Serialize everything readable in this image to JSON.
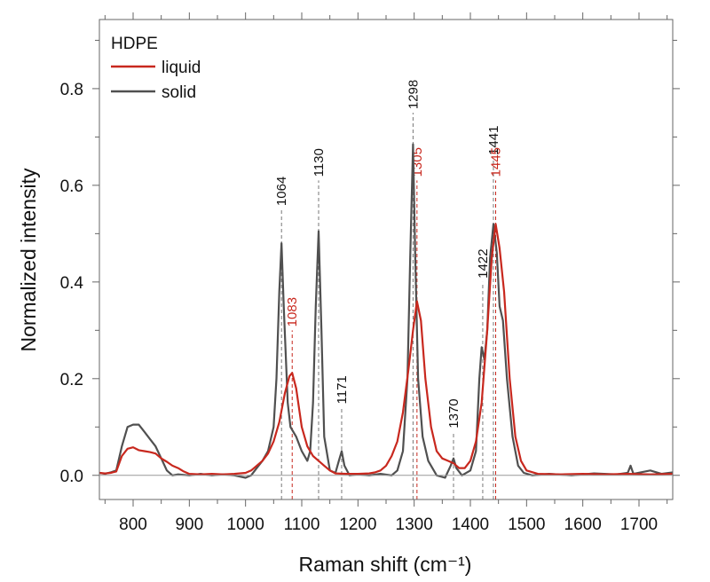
{
  "chart_data": {
    "type": "line",
    "title": "",
    "xlabel": "Raman shift (cm⁻¹)",
    "ylabel": "Normalized intensity",
    "xlim": [
      740,
      1760
    ],
    "ylim": [
      -0.05,
      0.943
    ],
    "xticks": [
      800,
      900,
      1000,
      1100,
      1200,
      1300,
      1400,
      1500,
      1600,
      1700
    ],
    "xtick_labels": [
      "800",
      "900",
      "1000",
      "1100",
      "1200",
      "1300",
      "1400",
      "1500",
      "1600",
      "1700"
    ],
    "yticks": [
      0.0,
      0.2,
      0.4,
      0.6,
      0.8
    ],
    "ytick_labels": [
      "0.0",
      "0.2",
      "0.4",
      "0.6",
      "0.8"
    ],
    "grid": false,
    "legend": {
      "title": "HDPE",
      "placement": "top-left",
      "entries": [
        "liquid",
        "solid"
      ]
    },
    "series": [
      {
        "name": "liquid",
        "color": "#c8281e",
        "x": [
          740,
          750,
          760,
          770,
          780,
          790,
          800,
          810,
          820,
          830,
          840,
          850,
          860,
          870,
          880,
          890,
          900,
          920,
          940,
          960,
          980,
          1000,
          1010,
          1020,
          1030,
          1040,
          1050,
          1060,
          1070,
          1078,
          1083,
          1090,
          1100,
          1110,
          1120,
          1130,
          1140,
          1150,
          1160,
          1180,
          1200,
          1220,
          1230,
          1240,
          1250,
          1260,
          1270,
          1280,
          1290,
          1298,
          1305,
          1312,
          1320,
          1330,
          1340,
          1350,
          1360,
          1370,
          1380,
          1390,
          1400,
          1410,
          1420,
          1430,
          1438,
          1445,
          1452,
          1460,
          1470,
          1480,
          1490,
          1500,
          1520,
          1560,
          1600,
          1640,
          1680,
          1720,
          1760
        ],
        "y": [
          0.005,
          0.004,
          0.005,
          0.008,
          0.04,
          0.055,
          0.058,
          0.052,
          0.05,
          0.048,
          0.045,
          0.035,
          0.028,
          0.02,
          0.015,
          0.008,
          0.003,
          0.002,
          0.003,
          0.002,
          0.003,
          0.005,
          0.01,
          0.02,
          0.03,
          0.045,
          0.07,
          0.11,
          0.17,
          0.205,
          0.212,
          0.18,
          0.1,
          0.06,
          0.04,
          0.03,
          0.02,
          0.01,
          0.004,
          0.003,
          0.003,
          0.004,
          0.006,
          0.01,
          0.02,
          0.04,
          0.07,
          0.13,
          0.22,
          0.3,
          0.36,
          0.32,
          0.2,
          0.1,
          0.05,
          0.035,
          0.03,
          0.025,
          0.015,
          0.015,
          0.03,
          0.07,
          0.15,
          0.3,
          0.45,
          0.52,
          0.47,
          0.38,
          0.2,
          0.08,
          0.03,
          0.01,
          0.003,
          0.002,
          0.003,
          0.002,
          0.003,
          0.002,
          0.003
        ]
      },
      {
        "name": "solid",
        "color": "#505050",
        "x": [
          740,
          750,
          760,
          770,
          780,
          790,
          800,
          810,
          820,
          830,
          840,
          850,
          860,
          870,
          880,
          900,
          920,
          940,
          960,
          980,
          1000,
          1010,
          1020,
          1030,
          1040,
          1050,
          1055,
          1060,
          1064,
          1068,
          1075,
          1080,
          1090,
          1100,
          1110,
          1115,
          1120,
          1125,
          1130,
          1135,
          1140,
          1150,
          1160,
          1166,
          1171,
          1176,
          1185,
          1200,
          1220,
          1240,
          1260,
          1270,
          1280,
          1288,
          1293,
          1298,
          1302,
          1307,
          1315,
          1325,
          1340,
          1355,
          1365,
          1370,
          1375,
          1385,
          1400,
          1410,
          1416,
          1420,
          1425,
          1430,
          1435,
          1441,
          1447,
          1452,
          1458,
          1465,
          1475,
          1485,
          1495,
          1510,
          1540,
          1580,
          1620,
          1660,
          1680,
          1685,
          1690,
          1720,
          1740,
          1760
        ],
        "y": [
          0.005,
          0.003,
          0.006,
          0.01,
          0.06,
          0.1,
          0.105,
          0.105,
          0.09,
          0.075,
          0.06,
          0.035,
          0.01,
          0.0,
          0.002,
          0.0,
          0.003,
          0.0,
          0.002,
          0.0,
          -0.005,
          0.0,
          0.015,
          0.03,
          0.05,
          0.1,
          0.2,
          0.38,
          0.48,
          0.35,
          0.15,
          0.1,
          0.08,
          0.05,
          0.03,
          0.05,
          0.15,
          0.35,
          0.505,
          0.3,
          0.08,
          0.01,
          0.005,
          0.03,
          0.05,
          0.02,
          0.0,
          0.002,
          0.0,
          0.003,
          0.0,
          0.01,
          0.05,
          0.2,
          0.45,
          0.685,
          0.45,
          0.2,
          0.08,
          0.03,
          0.0,
          -0.005,
          0.02,
          0.035,
          0.015,
          0.0,
          0.01,
          0.05,
          0.2,
          0.265,
          0.24,
          0.3,
          0.45,
          0.52,
          0.46,
          0.35,
          0.32,
          0.2,
          0.08,
          0.02,
          0.005,
          0.0,
          0.003,
          0.0,
          0.004,
          0.002,
          0.005,
          0.02,
          0.003,
          0.01,
          0.003,
          0.006
        ]
      }
    ],
    "annotations": [
      {
        "text": "1064",
        "x": 1064,
        "label_y": 0.55,
        "series": "solid"
      },
      {
        "text": "1083",
        "x": 1083,
        "label_y": 0.3,
        "series": "liquid"
      },
      {
        "text": "1130",
        "x": 1130,
        "label_y": 0.61,
        "series": "solid"
      },
      {
        "text": "1171",
        "x": 1171,
        "label_y": 0.14,
        "series": "solid"
      },
      {
        "text": "1298",
        "x": 1298,
        "label_y": 0.75,
        "series": "solid"
      },
      {
        "text": "1305",
        "x": 1305,
        "label_y": 0.61,
        "series": "liquid"
      },
      {
        "text": "1370",
        "x": 1370,
        "label_y": 0.09,
        "series": "solid"
      },
      {
        "text": "1422",
        "x": 1422,
        "label_y": 0.4,
        "series": "solid"
      },
      {
        "text": "1441",
        "x": 1441,
        "label_y": 0.655,
        "series": "solid"
      },
      {
        "text": "1445",
        "x": 1445,
        "label_y": 0.61,
        "series": "liquid"
      }
    ]
  }
}
